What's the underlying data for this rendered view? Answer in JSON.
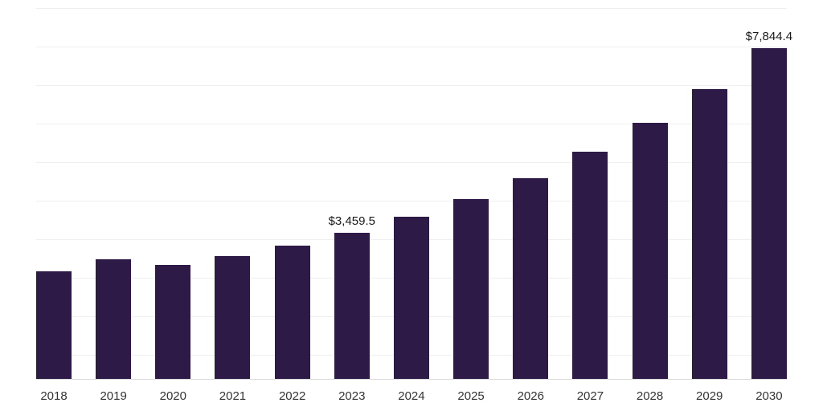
{
  "chart_data": {
    "type": "bar",
    "title": "",
    "xlabel": "",
    "ylabel": "",
    "categories": [
      "2018",
      "2019",
      "2020",
      "2021",
      "2022",
      "2023",
      "2024",
      "2025",
      "2026",
      "2027",
      "2028",
      "2029",
      "2030"
    ],
    "values": [
      2550,
      2835,
      2705,
      2915,
      3160,
      3459.5,
      3850,
      4270,
      4765,
      5390,
      6080,
      6880,
      7844.4
    ],
    "ylim": [
      0,
      8800
    ],
    "grid": "horizontal",
    "legend": "none",
    "bar_color": "#2E1A47",
    "annotations": [
      {
        "index": 5,
        "text": "$3,459.5"
      },
      {
        "index": 12,
        "text": "$7,844.4"
      }
    ]
  }
}
